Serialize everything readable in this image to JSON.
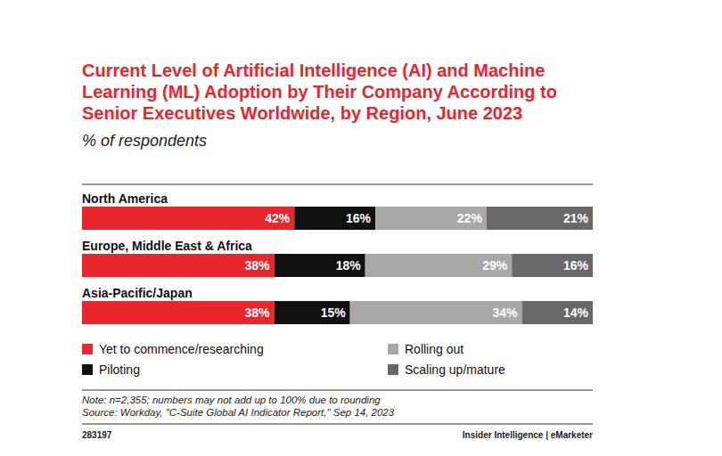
{
  "chart_data": {
    "type": "bar",
    "orientation": "horizontal",
    "stacked": true,
    "data_labels": true,
    "tick_labels": false,
    "legend": "bottom",
    "title": "Current Level of Artificial Intelligence (AI) and Machine Learning (ML) Adoption by Their Company According to Senior Executives Worldwide, by Region, June 2023",
    "subtitle": "% of respondents",
    "categories": [
      "North America",
      "Europe, Middle East & Africa",
      "Asia-Pacific/Japan"
    ],
    "xlim": [
      0,
      101
    ],
    "series": [
      {
        "name": "Yet to commence/researching",
        "color": "#e8262c",
        "values": [
          42,
          38,
          38
        ],
        "value_labels": [
          "42%",
          "38%",
          "38%"
        ]
      },
      {
        "name": "Piloting",
        "color": "#111111",
        "values": [
          16,
          18,
          15
        ],
        "value_labels": [
          "16%",
          "18%",
          "15%"
        ]
      },
      {
        "name": "Rolling out",
        "color": "#a8a8a8",
        "values": [
          22,
          29,
          34
        ],
        "value_labels": [
          "22%",
          "29%",
          "34%"
        ]
      },
      {
        "name": "Scaling up/mature",
        "color": "#686868",
        "values": [
          21,
          16,
          14
        ],
        "value_labels": [
          "21%",
          "16%",
          "14%"
        ]
      }
    ],
    "note": "Note: n=2,355; numbers may not add up to 100% due to rounding",
    "source": "Source: Workday, \"C-Suite Global AI Indicator Report,\" Sep 14, 2023",
    "chart_id": "283197",
    "footer": "Insider Intelligence | eMarketer"
  }
}
